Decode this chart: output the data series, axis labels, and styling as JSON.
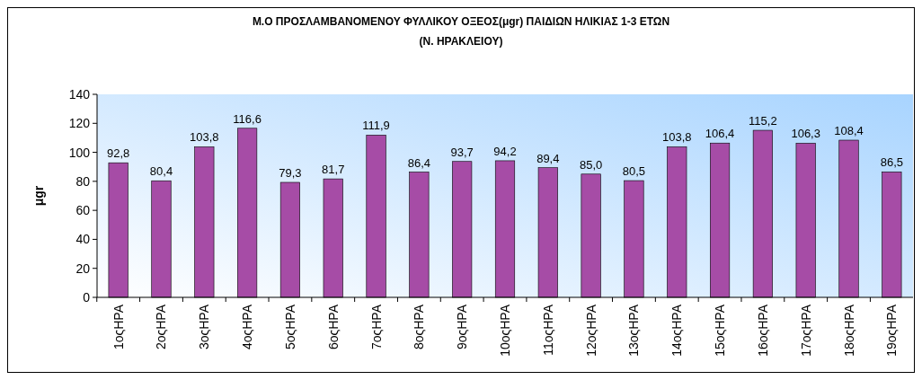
{
  "chart_data": {
    "type": "bar",
    "title": "Μ.Ο ΠΡΟΣΛΑΜΒΑΝΟΜΕΝΟΥ ΦΥΛΛΙΚΟΥ ΟΞΕΟΣ(μgr) ΠΑΙΔΙΩΝ ΗΛΙΚΙΑΣ 1-3 ΕΤΩΝ",
    "subtitle": "(Ν. ΗΡΑΚΛΕΙΟΥ)",
    "ylabel": "μgr",
    "categories": [
      "1οςΗΡΑ",
      "2οςΗΡΑ",
      "3οςΗΡΑ",
      "4οςΗΡΑ",
      "5οςΗΡΑ",
      "6οςΗΡΑ",
      "7οςΗΡΑ",
      "8οςΗΡΑ",
      "9οςΗΡΑ",
      "10οςΗΡΑ",
      "11οςΗΡΑ",
      "12οςΗΡΑ",
      "13οςΗΡΑ",
      "14οςΗΡΑ",
      "15οςΗΡΑ",
      "16οςΗΡΑ",
      "17οςΗΡΑ",
      "18οςΗΡΑ",
      "19οςΗΡΑ"
    ],
    "values": [
      92.8,
      80.4,
      103.8,
      116.6,
      79.3,
      81.7,
      111.9,
      86.4,
      93.7,
      94.2,
      89.4,
      85.0,
      80.5,
      103.8,
      106.4,
      115.2,
      106.3,
      108.4,
      86.5
    ],
    "value_labels": [
      "92,8",
      "80,4",
      "103,8",
      "116,6",
      "79,3",
      "81,7",
      "111,9",
      "86,4",
      "93,7",
      "94,2",
      "89,4",
      "85,0",
      "80,5",
      "103,8",
      "106,4",
      "115,2",
      "106,3",
      "108,4",
      "86,5"
    ],
    "color": "#a64ca6",
    "ylim": [
      0,
      140
    ],
    "yticks": [
      0,
      20,
      40,
      60,
      80,
      100,
      120,
      140
    ],
    "grid": false
  }
}
